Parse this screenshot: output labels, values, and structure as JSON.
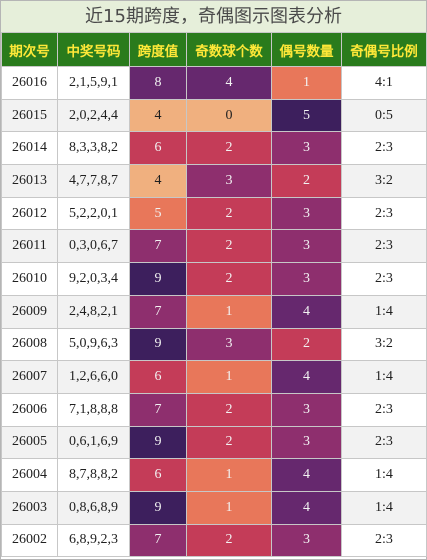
{
  "title": "近15期跨度，奇偶图示图表分析",
  "headers": [
    "期次号",
    "中奖号码",
    "跨度值",
    "奇数球个数",
    "偶号数量",
    "奇偶号比例"
  ],
  "colors": {
    "header_bg": "#2a7b1c",
    "header_text": "#ffe838",
    "title_bg": "#e6efda",
    "level_0": "#f0b07f",
    "level_1": "#e8775a",
    "level_2": "#c43c58",
    "level_3": "#8e2f6e",
    "level_4": "#66286e",
    "level_5": "#3d1f5d"
  },
  "rows": [
    {
      "issue": "26016",
      "numbers": "2,1,5,9,1",
      "span": "8",
      "odd": "4",
      "even": "1",
      "ratio": "4:1"
    },
    {
      "issue": "26015",
      "numbers": "2,0,2,4,4",
      "span": "4",
      "odd": "0",
      "even": "5",
      "ratio": "0:5"
    },
    {
      "issue": "26014",
      "numbers": "8,3,3,8,2",
      "span": "6",
      "odd": "2",
      "even": "3",
      "ratio": "2:3"
    },
    {
      "issue": "26013",
      "numbers": "4,7,7,8,7",
      "span": "4",
      "odd": "3",
      "even": "2",
      "ratio": "3:2"
    },
    {
      "issue": "26012",
      "numbers": "5,2,2,0,1",
      "span": "5",
      "odd": "2",
      "even": "3",
      "ratio": "2:3"
    },
    {
      "issue": "26011",
      "numbers": "0,3,0,6,7",
      "span": "7",
      "odd": "2",
      "even": "3",
      "ratio": "2:3"
    },
    {
      "issue": "26010",
      "numbers": "9,2,0,3,4",
      "span": "9",
      "odd": "2",
      "even": "3",
      "ratio": "2:3"
    },
    {
      "issue": "26009",
      "numbers": "2,4,8,2,1",
      "span": "7",
      "odd": "1",
      "even": "4",
      "ratio": "1:4"
    },
    {
      "issue": "26008",
      "numbers": "5,0,9,6,3",
      "span": "9",
      "odd": "3",
      "even": "2",
      "ratio": "3:2"
    },
    {
      "issue": "26007",
      "numbers": "1,2,6,6,0",
      "span": "6",
      "odd": "1",
      "even": "4",
      "ratio": "1:4"
    },
    {
      "issue": "26006",
      "numbers": "7,1,8,8,8",
      "span": "7",
      "odd": "2",
      "even": "3",
      "ratio": "2:3"
    },
    {
      "issue": "26005",
      "numbers": "0,6,1,6,9",
      "span": "9",
      "odd": "2",
      "even": "3",
      "ratio": "2:3"
    },
    {
      "issue": "26004",
      "numbers": "8,7,8,8,2",
      "span": "6",
      "odd": "1",
      "even": "4",
      "ratio": "1:4"
    },
    {
      "issue": "26003",
      "numbers": "0,8,6,8,9",
      "span": "9",
      "odd": "1",
      "even": "4",
      "ratio": "1:4"
    },
    {
      "issue": "26002",
      "numbers": "6,8,9,2,3",
      "span": "7",
      "odd": "2",
      "even": "3",
      "ratio": "2:3"
    }
  ]
}
